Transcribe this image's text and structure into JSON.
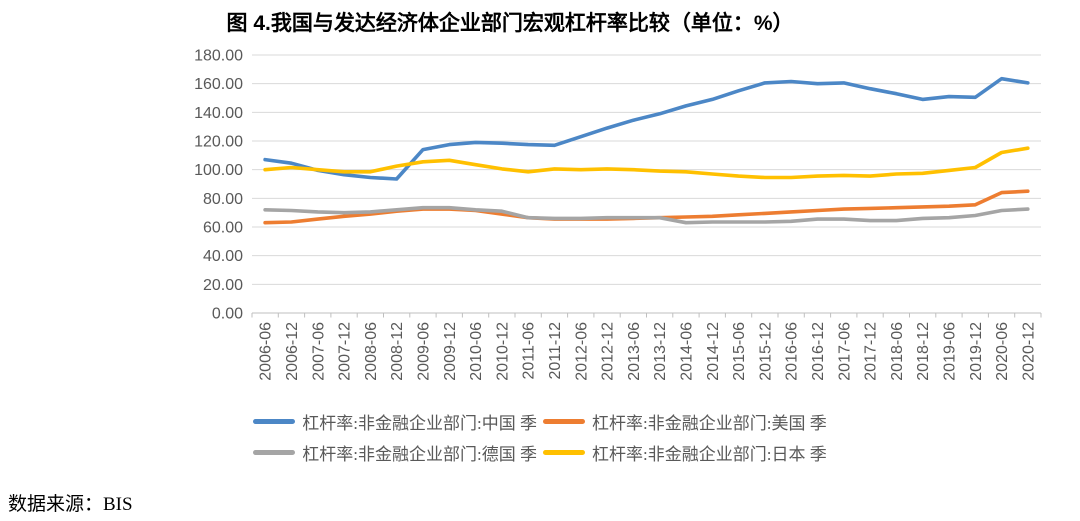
{
  "figure": {
    "title": "图 4.我国与发达经济体企业部门宏观杠杆率比较（单位：%）",
    "source": "数据来源：BIS"
  },
  "colors": {
    "axis_text": "#595959",
    "gridline": "#D9D9D9",
    "axis_line": "#BFBFBF",
    "background": "#FFFFFF"
  },
  "chart_data": {
    "type": "line",
    "title": "图 4.我国与发达经济体企业部门宏观杠杆率比较（单位：%）",
    "unit": "%",
    "xlabel": "",
    "ylabel": "",
    "ylim": [
      0,
      180
    ],
    "y_tick_step": 20,
    "grid": true,
    "legend_position": "bottom",
    "legend_rows": [
      [
        0,
        1
      ],
      [
        2,
        3
      ]
    ],
    "y_ticks": [
      "180.00",
      "160.00",
      "140.00",
      "120.00",
      "100.00",
      "80.00",
      "60.00",
      "40.00",
      "20.00",
      "0.00"
    ],
    "categories": [
      "2006-06",
      "2006-12",
      "2007-06",
      "2007-12",
      "2008-06",
      "2008-12",
      "2009-06",
      "2009-12",
      "2010-06",
      "2010-12",
      "2011-06",
      "2011-12",
      "2012-06",
      "2012-12",
      "2013-06",
      "2013-12",
      "2014-06",
      "2014-12",
      "2015-06",
      "2015-12",
      "2016-06",
      "2016-12",
      "2017-06",
      "2017-12",
      "2018-06",
      "2018-12",
      "2019-06",
      "2019-12",
      "2020-06",
      "2020-12"
    ],
    "series": [
      {
        "name": "杠杆率:非金融企业部门:中国 季",
        "color": "#4C87C6",
        "values": [
          107,
          104.5,
          99.5,
          96.5,
          94.5,
          93.5,
          114,
          117.5,
          119,
          118.5,
          117.5,
          117,
          123,
          129,
          134.5,
          139,
          144.5,
          149,
          155,
          160.5,
          161.5,
          160,
          160.5,
          156.5,
          153,
          149,
          151,
          150.5,
          163.5,
          160.5
        ]
      },
      {
        "name": "杠杆率:非金融企业部门:美国 季",
        "color": "#ED7D31",
        "values": [
          63,
          63.5,
          65.5,
          67.5,
          69,
          71,
          72.5,
          72.5,
          71.5,
          69,
          66.5,
          65.5,
          65.5,
          65.5,
          66,
          66.5,
          67,
          67.5,
          68.5,
          69.5,
          70.5,
          71.5,
          72.5,
          73,
          73.5,
          74,
          74.5,
          75.5,
          84,
          85
        ]
      },
      {
        "name": "杠杆率:非金融企业部门:德国 季",
        "color": "#A5A5A5",
        "values": [
          72,
          71.5,
          70.5,
          70,
          70.5,
          72,
          73.5,
          73.5,
          72,
          71,
          66.5,
          66,
          66,
          66.5,
          66.5,
          66.5,
          63,
          63.5,
          63.5,
          63.5,
          64,
          65.5,
          65.5,
          64.5,
          64.5,
          66,
          66.5,
          68,
          71.5,
          72.5
        ]
      },
      {
        "name": "杠杆率:非金融企业部门:日本 季",
        "color": "#FFC000",
        "values": [
          100,
          101.5,
          100,
          98.5,
          98.5,
          102.5,
          105.5,
          106.5,
          103.5,
          100.5,
          98.5,
          100.5,
          100,
          100.5,
          100,
          99,
          98.5,
          97,
          95.5,
          94.5,
          94.5,
          95.5,
          96,
          95.5,
          97,
          97.5,
          99.5,
          101.5,
          112,
          115
        ]
      }
    ]
  }
}
